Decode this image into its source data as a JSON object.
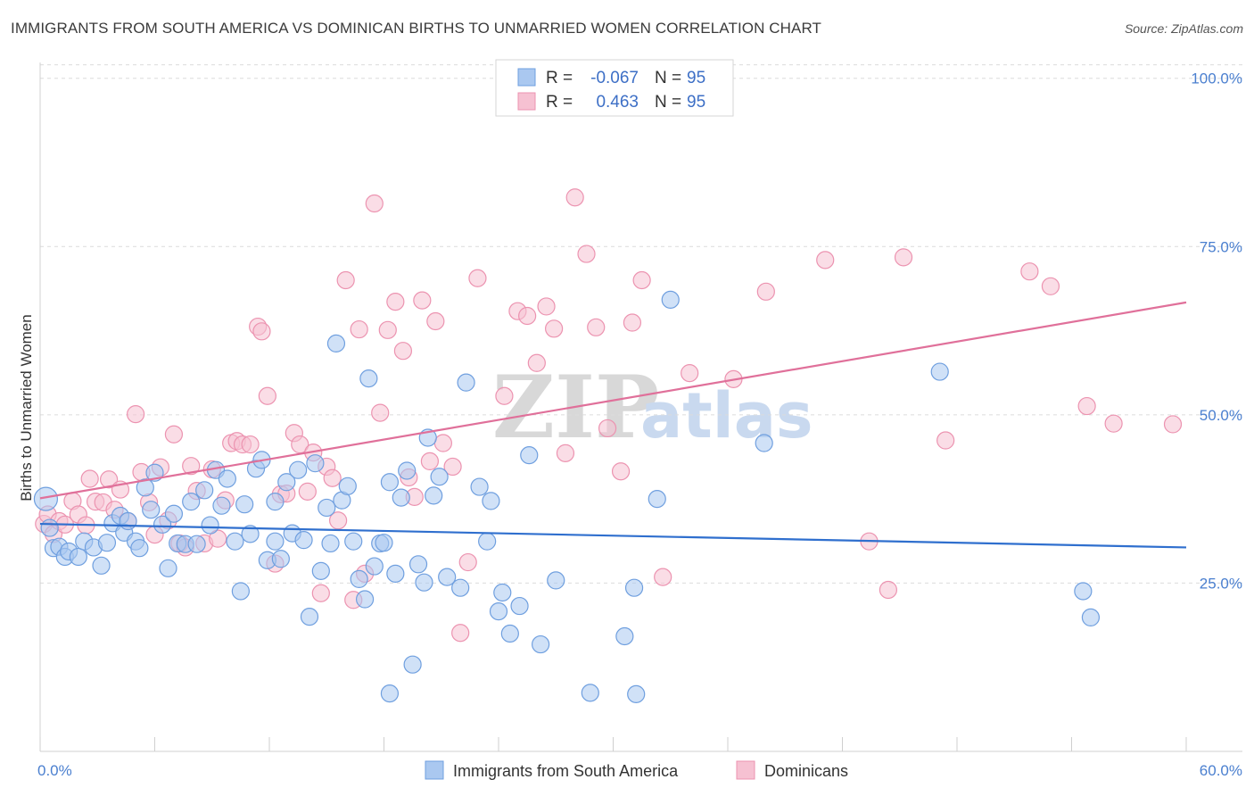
{
  "header": {
    "title": "IMMIGRANTS FROM SOUTH AMERICA VS DOMINICAN BIRTHS TO UNMARRIED WOMEN CORRELATION CHART",
    "source": "Source: ZipAtlas.com"
  },
  "legend": {
    "r_label": "R =",
    "n_label": "N =",
    "series": [
      {
        "r": "-0.067",
        "n": "95"
      },
      {
        "r": "0.463",
        "n": "95"
      }
    ]
  },
  "watermark": {
    "zip": "ZIP",
    "atlas": "atlas"
  },
  "chart_data": {
    "type": "scatter",
    "title": "IMMIGRANTS FROM SOUTH AMERICA VS DOMINICAN BIRTHS TO UNMARRIED WOMEN CORRELATION CHART",
    "xlabel": "",
    "ylabel": "Births to Unmarried Women",
    "xlim": [
      0,
      60
    ],
    "ylim": [
      0,
      105
    ],
    "x_tick_labels": [
      "0.0%",
      "60.0%"
    ],
    "y_ticks": [
      25,
      50,
      75,
      100
    ],
    "y_tick_labels": [
      "25.0%",
      "50.0%",
      "75.0%",
      "100.0%"
    ],
    "grid": true,
    "legend_position": "top-center",
    "colors": {
      "blue_fill": "#aac8f0",
      "blue_stroke": "#6f9fdf",
      "blue_line": "#2f6fce",
      "pink_fill": "#f6c1d2",
      "pink_stroke": "#ec93b0",
      "pink_line": "#e0709a"
    },
    "series": [
      {
        "name": "Immigrants from South America",
        "color": "blue",
        "trend": {
          "x": [
            0,
            60
          ],
          "y": [
            33.8,
            30.3
          ]
        },
        "points": [
          [
            0.3,
            37.5
          ],
          [
            0.5,
            33.2
          ],
          [
            0.7,
            30.2
          ],
          [
            1.0,
            30.4
          ],
          [
            1.3,
            28.9
          ],
          [
            1.5,
            29.7
          ],
          [
            2.0,
            28.9
          ],
          [
            2.3,
            31.2
          ],
          [
            2.8,
            30.3
          ],
          [
            3.2,
            27.6
          ],
          [
            3.5,
            31.0
          ],
          [
            3.8,
            33.9
          ],
          [
            4.2,
            35.0
          ],
          [
            4.4,
            32.5
          ],
          [
            4.6,
            34.2
          ],
          [
            5.0,
            31.2
          ],
          [
            5.2,
            30.2
          ],
          [
            5.5,
            39.2
          ],
          [
            5.8,
            35.9
          ],
          [
            6.0,
            41.4
          ],
          [
            6.4,
            33.7
          ],
          [
            6.7,
            27.2
          ],
          [
            7.0,
            35.3
          ],
          [
            7.2,
            30.9
          ],
          [
            7.6,
            30.8
          ],
          [
            7.9,
            37.1
          ],
          [
            8.2,
            30.8
          ],
          [
            8.6,
            38.8
          ],
          [
            8.9,
            33.6
          ],
          [
            9.2,
            41.8
          ],
          [
            9.5,
            36.5
          ],
          [
            9.8,
            40.5
          ],
          [
            10.2,
            31.2
          ],
          [
            10.5,
            23.8
          ],
          [
            10.7,
            36.7
          ],
          [
            11.0,
            32.3
          ],
          [
            11.3,
            42.0
          ],
          [
            11.6,
            43.3
          ],
          [
            11.9,
            28.4
          ],
          [
            12.3,
            37.1
          ],
          [
            12.6,
            28.6
          ],
          [
            12.9,
            40.0
          ],
          [
            13.2,
            32.4
          ],
          [
            13.5,
            41.8
          ],
          [
            13.8,
            31.4
          ],
          [
            14.1,
            20.0
          ],
          [
            14.4,
            42.8
          ],
          [
            14.7,
            26.8
          ],
          [
            15.0,
            36.2
          ],
          [
            15.2,
            30.9
          ],
          [
            15.5,
            60.6
          ],
          [
            15.8,
            37.3
          ],
          [
            16.1,
            39.4
          ],
          [
            16.4,
            31.2
          ],
          [
            16.7,
            25.6
          ],
          [
            17.0,
            22.6
          ],
          [
            17.2,
            55.4
          ],
          [
            17.5,
            27.5
          ],
          [
            17.8,
            30.9
          ],
          [
            18.0,
            31.0
          ],
          [
            18.3,
            40.0
          ],
          [
            18.6,
            26.4
          ],
          [
            18.9,
            37.7
          ],
          [
            19.2,
            41.7
          ],
          [
            19.5,
            12.9
          ],
          [
            19.8,
            27.8
          ],
          [
            20.1,
            25.1
          ],
          [
            20.3,
            46.6
          ],
          [
            20.6,
            38.0
          ],
          [
            20.9,
            40.8
          ],
          [
            21.3,
            25.9
          ],
          [
            22.0,
            24.3
          ],
          [
            22.3,
            54.8
          ],
          [
            23.0,
            39.3
          ],
          [
            23.4,
            31.2
          ],
          [
            23.6,
            37.2
          ],
          [
            24.0,
            20.8
          ],
          [
            24.2,
            23.6
          ],
          [
            24.6,
            17.5
          ],
          [
            25.1,
            21.6
          ],
          [
            25.6,
            44.0
          ],
          [
            26.2,
            15.9
          ],
          [
            27.0,
            25.4
          ],
          [
            28.8,
            8.7
          ],
          [
            30.6,
            17.1
          ],
          [
            31.1,
            24.3
          ],
          [
            31.2,
            8.5
          ],
          [
            32.3,
            37.5
          ],
          [
            33.0,
            67.1
          ],
          [
            37.9,
            45.8
          ],
          [
            47.1,
            56.4
          ],
          [
            54.6,
            23.8
          ],
          [
            55.0,
            19.9
          ],
          [
            18.3,
            8.6
          ],
          [
            12.3,
            31.2
          ]
        ]
      },
      {
        "name": "Dominicans",
        "color": "pink",
        "trend": {
          "x": [
            0,
            60
          ],
          "y": [
            37.6,
            66.7
          ]
        },
        "points": [
          [
            0.2,
            33.8
          ],
          [
            0.4,
            35.2
          ],
          [
            0.7,
            32.3
          ],
          [
            1.0,
            34.2
          ],
          [
            1.3,
            33.7
          ],
          [
            1.7,
            37.2
          ],
          [
            2.0,
            35.2
          ],
          [
            2.4,
            33.6
          ],
          [
            2.6,
            40.5
          ],
          [
            2.9,
            37.1
          ],
          [
            3.3,
            37.0
          ],
          [
            3.6,
            40.4
          ],
          [
            3.9,
            35.9
          ],
          [
            4.2,
            38.9
          ],
          [
            4.6,
            34.2
          ],
          [
            5.0,
            50.1
          ],
          [
            5.3,
            41.5
          ],
          [
            5.7,
            37.0
          ],
          [
            6.0,
            32.2
          ],
          [
            6.3,
            42.2
          ],
          [
            6.7,
            34.3
          ],
          [
            7.0,
            47.1
          ],
          [
            7.3,
            30.9
          ],
          [
            7.6,
            30.3
          ],
          [
            7.9,
            42.4
          ],
          [
            8.2,
            38.7
          ],
          [
            8.6,
            30.9
          ],
          [
            9.0,
            41.9
          ],
          [
            9.3,
            31.6
          ],
          [
            9.7,
            37.3
          ],
          [
            10.0,
            45.8
          ],
          [
            10.3,
            46.1
          ],
          [
            10.6,
            45.6
          ],
          [
            11.0,
            45.6
          ],
          [
            11.4,
            63.1
          ],
          [
            11.6,
            62.4
          ],
          [
            11.9,
            52.8
          ],
          [
            12.3,
            27.9
          ],
          [
            12.6,
            38.2
          ],
          [
            12.9,
            38.3
          ],
          [
            13.3,
            47.3
          ],
          [
            13.6,
            45.6
          ],
          [
            14.0,
            38.6
          ],
          [
            14.3,
            44.4
          ],
          [
            14.7,
            23.5
          ],
          [
            15.0,
            42.3
          ],
          [
            15.3,
            40.6
          ],
          [
            15.6,
            34.3
          ],
          [
            16.0,
            70.0
          ],
          [
            16.4,
            22.5
          ],
          [
            16.7,
            62.7
          ],
          [
            17.0,
            26.4
          ],
          [
            17.5,
            81.4
          ],
          [
            17.8,
            50.3
          ],
          [
            18.2,
            62.6
          ],
          [
            18.6,
            66.8
          ],
          [
            19.0,
            59.5
          ],
          [
            19.3,
            40.7
          ],
          [
            19.6,
            37.8
          ],
          [
            20.0,
            67.0
          ],
          [
            20.4,
            43.1
          ],
          [
            20.7,
            63.9
          ],
          [
            21.1,
            45.8
          ],
          [
            21.6,
            42.3
          ],
          [
            22.0,
            17.6
          ],
          [
            22.4,
            28.1
          ],
          [
            22.9,
            70.3
          ],
          [
            24.3,
            52.8
          ],
          [
            25.0,
            65.4
          ],
          [
            25.5,
            64.7
          ],
          [
            26.0,
            57.7
          ],
          [
            26.5,
            66.1
          ],
          [
            26.9,
            62.8
          ],
          [
            27.5,
            44.3
          ],
          [
            28.0,
            82.3
          ],
          [
            28.6,
            73.9
          ],
          [
            29.1,
            63.0
          ],
          [
            29.7,
            48.0
          ],
          [
            30.4,
            41.6
          ],
          [
            31.0,
            63.7
          ],
          [
            31.5,
            70.0
          ],
          [
            32.6,
            25.9
          ],
          [
            34.0,
            56.2
          ],
          [
            36.3,
            55.3
          ],
          [
            38.0,
            68.3
          ],
          [
            41.1,
            73.0
          ],
          [
            43.4,
            31.2
          ],
          [
            44.4,
            24.0
          ],
          [
            45.2,
            73.4
          ],
          [
            47.4,
            46.2
          ],
          [
            51.8,
            71.3
          ],
          [
            52.9,
            69.1
          ],
          [
            54.8,
            51.3
          ],
          [
            56.2,
            48.7
          ],
          [
            59.3,
            48.6
          ]
        ]
      }
    ]
  },
  "bottom_legend": {
    "items": [
      {
        "label": "Immigrants from South America"
      },
      {
        "label": "Dominicans"
      }
    ]
  }
}
